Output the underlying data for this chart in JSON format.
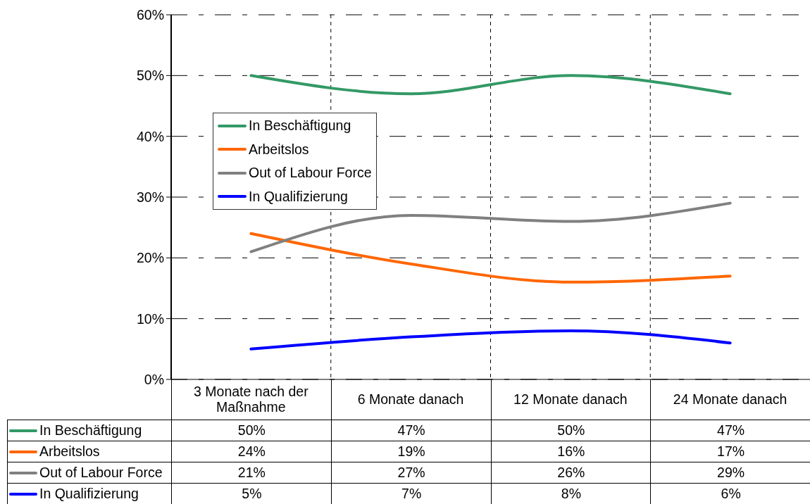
{
  "chart_data": {
    "type": "line",
    "categories": [
      "3 Monate nach der Maßnahme",
      "6 Monate danach",
      "12 Monate danach",
      "24 Monate danach"
    ],
    "series": [
      {
        "name": "In Beschäftigung",
        "color": "#339966",
        "values": [
          50,
          47,
          50,
          47
        ],
        "value_labels": [
          "50%",
          "47%",
          "50%",
          "47%"
        ]
      },
      {
        "name": "Arbeitslos",
        "color": "#ff6600",
        "values": [
          24,
          19,
          16,
          17
        ],
        "value_labels": [
          "24%",
          "19%",
          "16%",
          "17%"
        ]
      },
      {
        "name": "Out of Labour Force",
        "color": "#808080",
        "values": [
          21,
          27,
          26,
          29
        ],
        "value_labels": [
          "21%",
          "27%",
          "26%",
          "29%"
        ]
      },
      {
        "name": "In Qualifizierung",
        "color": "#0000ff",
        "values": [
          5,
          7,
          8,
          6
        ],
        "value_labels": [
          "5%",
          "7%",
          "8%",
          "6%"
        ]
      }
    ],
    "ylim": [
      0,
      60
    ],
    "yticks": [
      {
        "value": 0,
        "label": "0%"
      },
      {
        "value": 10,
        "label": "10%"
      },
      {
        "value": 20,
        "label": "20%"
      },
      {
        "value": 30,
        "label": "30%"
      },
      {
        "value": 40,
        "label": "40%"
      },
      {
        "value": 50,
        "label": "50%"
      },
      {
        "value": 60,
        "label": "60%"
      }
    ],
    "grid": true,
    "legend": "left",
    "marker": "none"
  }
}
